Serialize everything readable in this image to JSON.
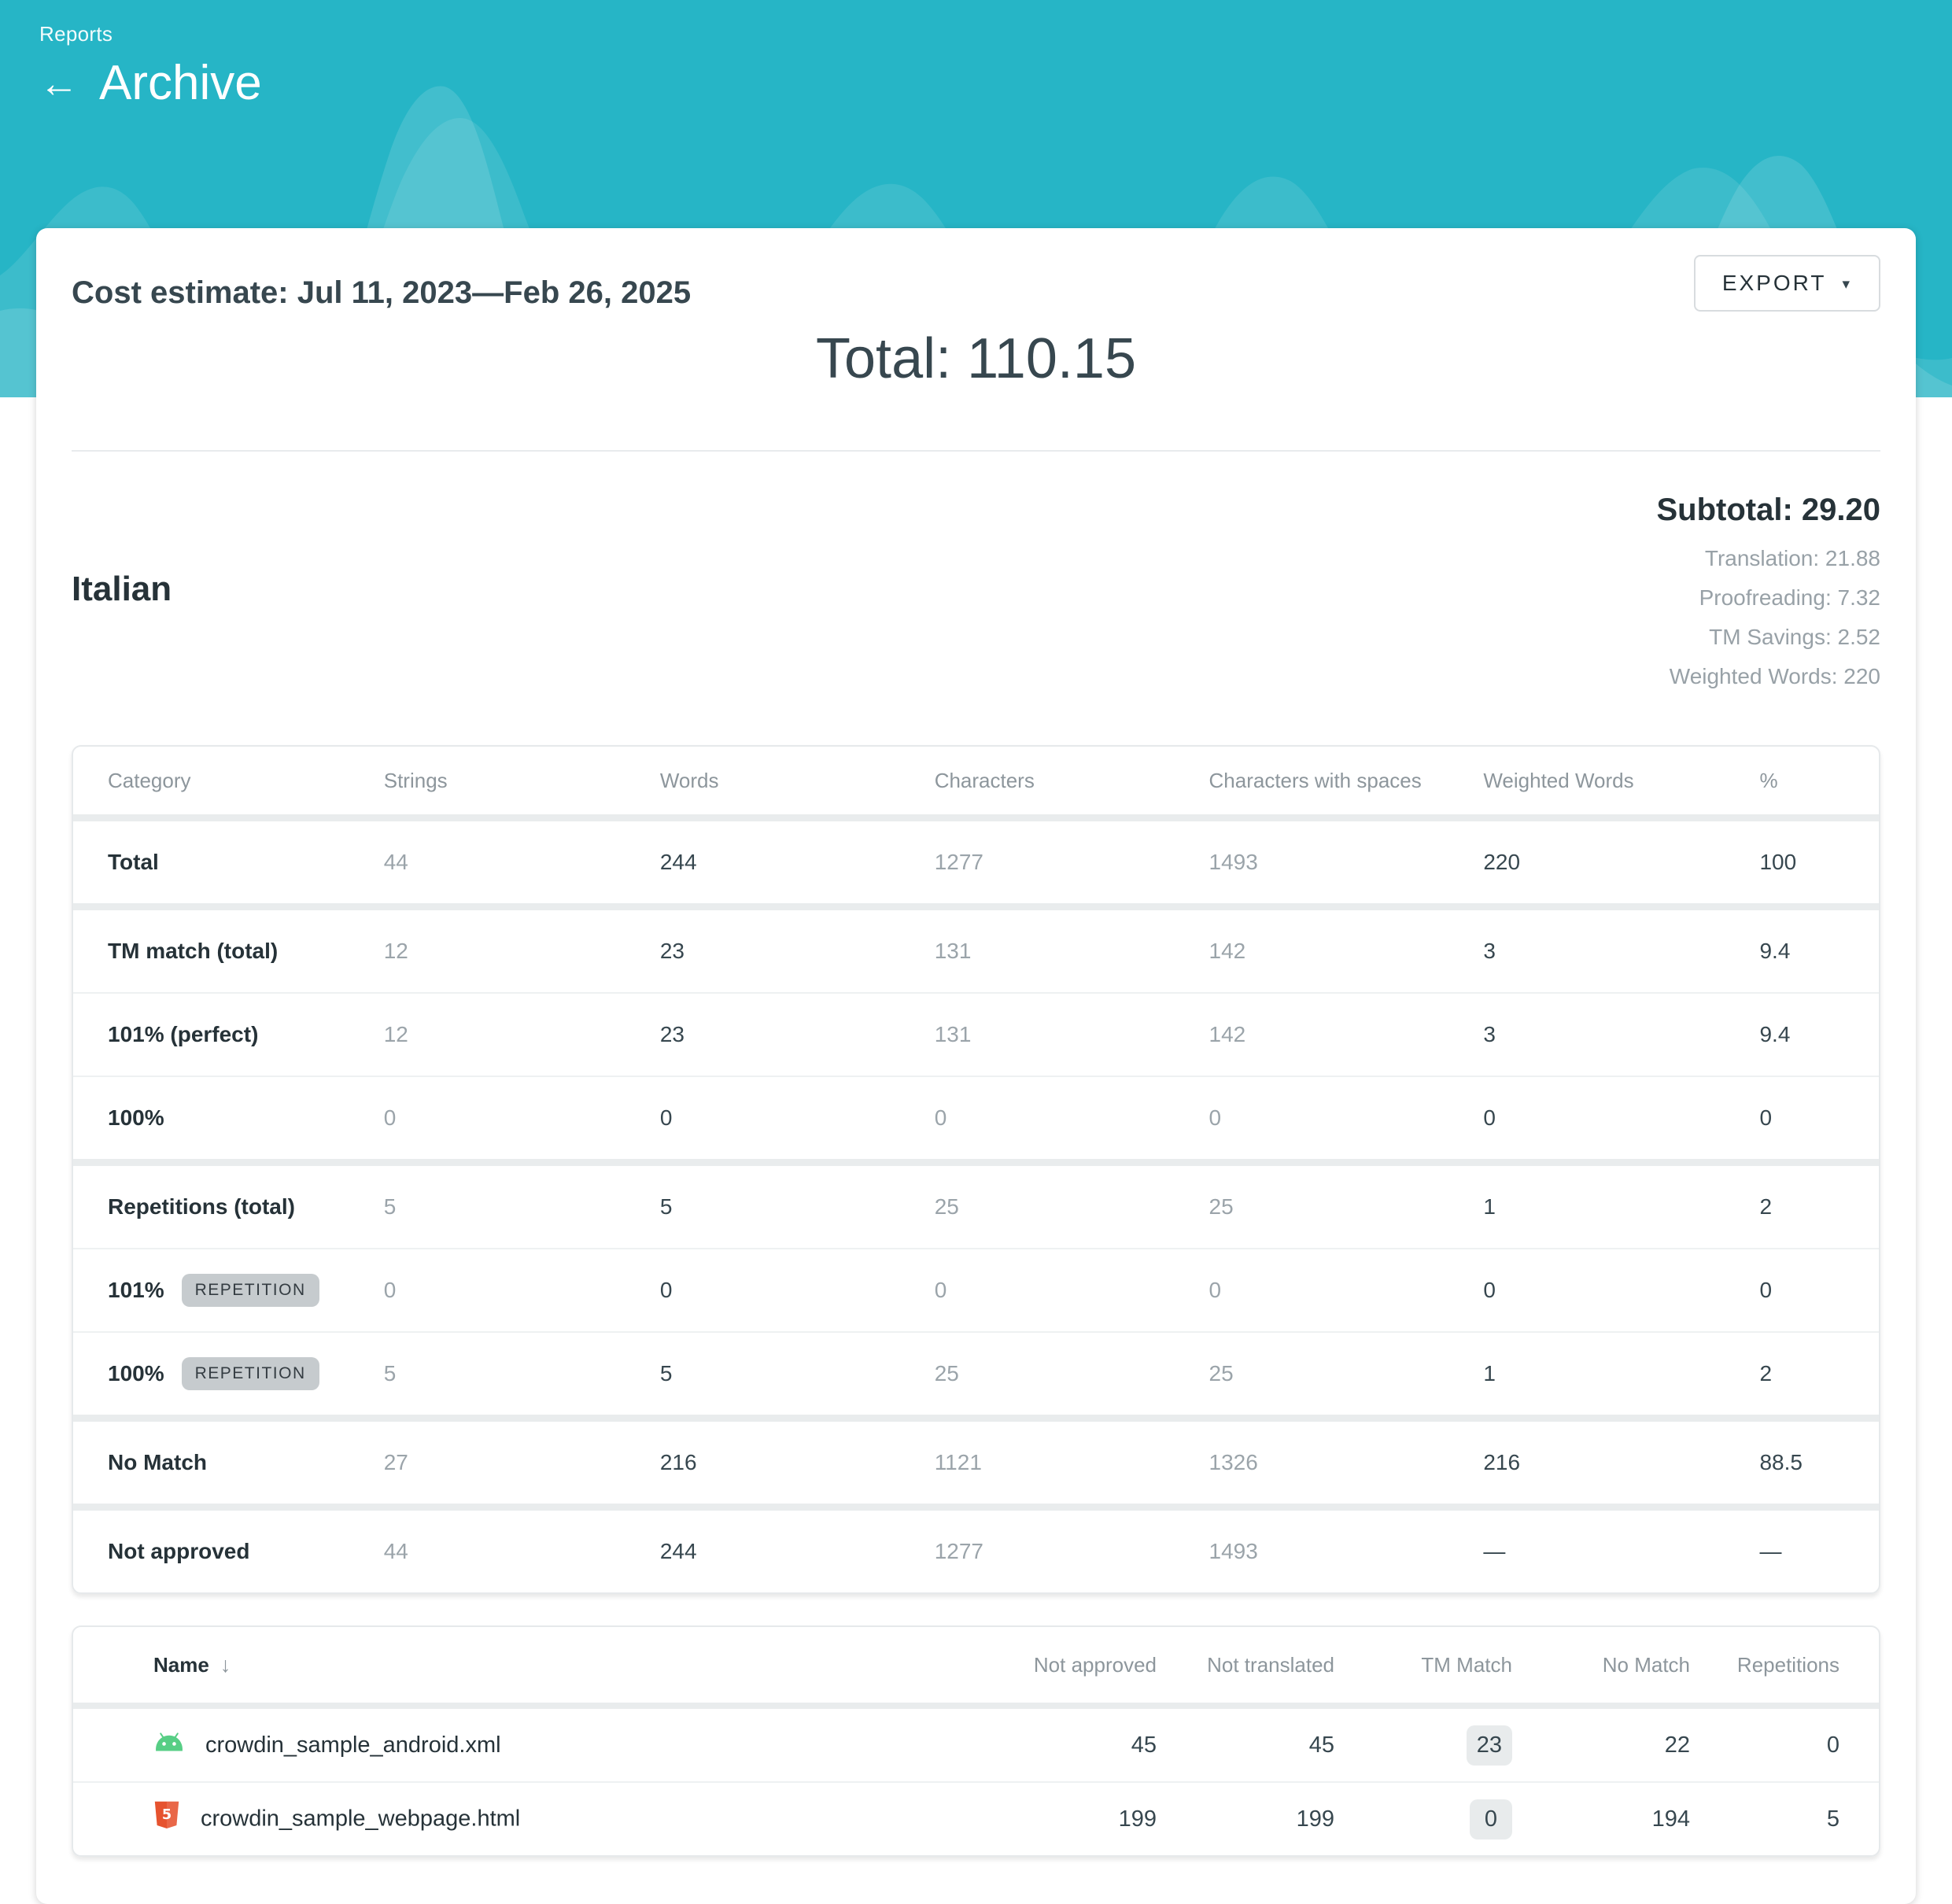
{
  "header": {
    "breadcrumb": "Reports",
    "back_icon": "←",
    "title": "Archive",
    "background_color": "#26b5c6"
  },
  "report": {
    "title": "Cost estimate: Jul 11, 2023—Feb 26, 2025",
    "total": "Total: 110.15",
    "export_button": {
      "label": "EXPORT",
      "caret": "▾"
    }
  },
  "language_section": {
    "language": "Italian",
    "subtotal": "Subtotal: 29.20",
    "details": [
      "Translation: 21.88",
      "Proofreading: 7.32",
      "TM Savings: 2.52",
      "Weighted Words: 220"
    ]
  },
  "category_table": {
    "columns": [
      "Category",
      "Strings",
      "Words",
      "Characters",
      "Characters with spaces",
      "Weighted Words",
      "%"
    ],
    "rows": [
      {
        "category": "Total",
        "group_start": false,
        "values": [
          "44",
          "244",
          "1277",
          "1493",
          "220",
          "100"
        ]
      },
      {
        "category": "TM match (total)",
        "group_start": true,
        "values": [
          "12",
          "23",
          "131",
          "142",
          "3",
          "9.4"
        ]
      },
      {
        "category": "101% (perfect)",
        "group_start": false,
        "values": [
          "12",
          "23",
          "131",
          "142",
          "3",
          "9.4"
        ]
      },
      {
        "category": "100%",
        "group_start": false,
        "values": [
          "0",
          "0",
          "0",
          "0",
          "0",
          "0"
        ]
      },
      {
        "category": "Repetitions (total)",
        "group_start": true,
        "values": [
          "5",
          "5",
          "25",
          "25",
          "1",
          "2"
        ]
      },
      {
        "category": "101%",
        "badge": "REPETITION",
        "group_start": false,
        "values": [
          "0",
          "0",
          "0",
          "0",
          "0",
          "0"
        ]
      },
      {
        "category": "100%",
        "badge": "REPETITION",
        "group_start": false,
        "values": [
          "5",
          "5",
          "25",
          "25",
          "1",
          "2"
        ]
      },
      {
        "category": "No Match",
        "group_start": true,
        "values": [
          "27",
          "216",
          "1121",
          "1326",
          "216",
          "88.5"
        ]
      },
      {
        "category": "Not approved",
        "group_start": true,
        "values": [
          "44",
          "244",
          "1277",
          "1493",
          "—",
          "—"
        ]
      }
    ]
  },
  "files_table": {
    "columns": [
      "Name",
      "Not approved",
      "Not translated",
      "TM Match",
      "No Match",
      "Repetitions"
    ],
    "sort_icon": "↓",
    "rows": [
      {
        "name": "crowdin_sample_android.xml",
        "icon": "android-file-icon",
        "icon_color": "#57CE85",
        "values": [
          "45",
          "45",
          "23",
          "22",
          "0"
        ]
      },
      {
        "name": "crowdin_sample_webpage.html",
        "icon": "html-file-icon",
        "icon_color": "#E6532F",
        "values": [
          "199",
          "199",
          "0",
          "194",
          "5"
        ]
      }
    ]
  },
  "colors": {
    "hero_teal": "#26b5c6",
    "dark_text": "#263238",
    "value_dark": "#37474f",
    "value_muted": "#9ba4aa",
    "table_border": "#e6e9eb"
  }
}
